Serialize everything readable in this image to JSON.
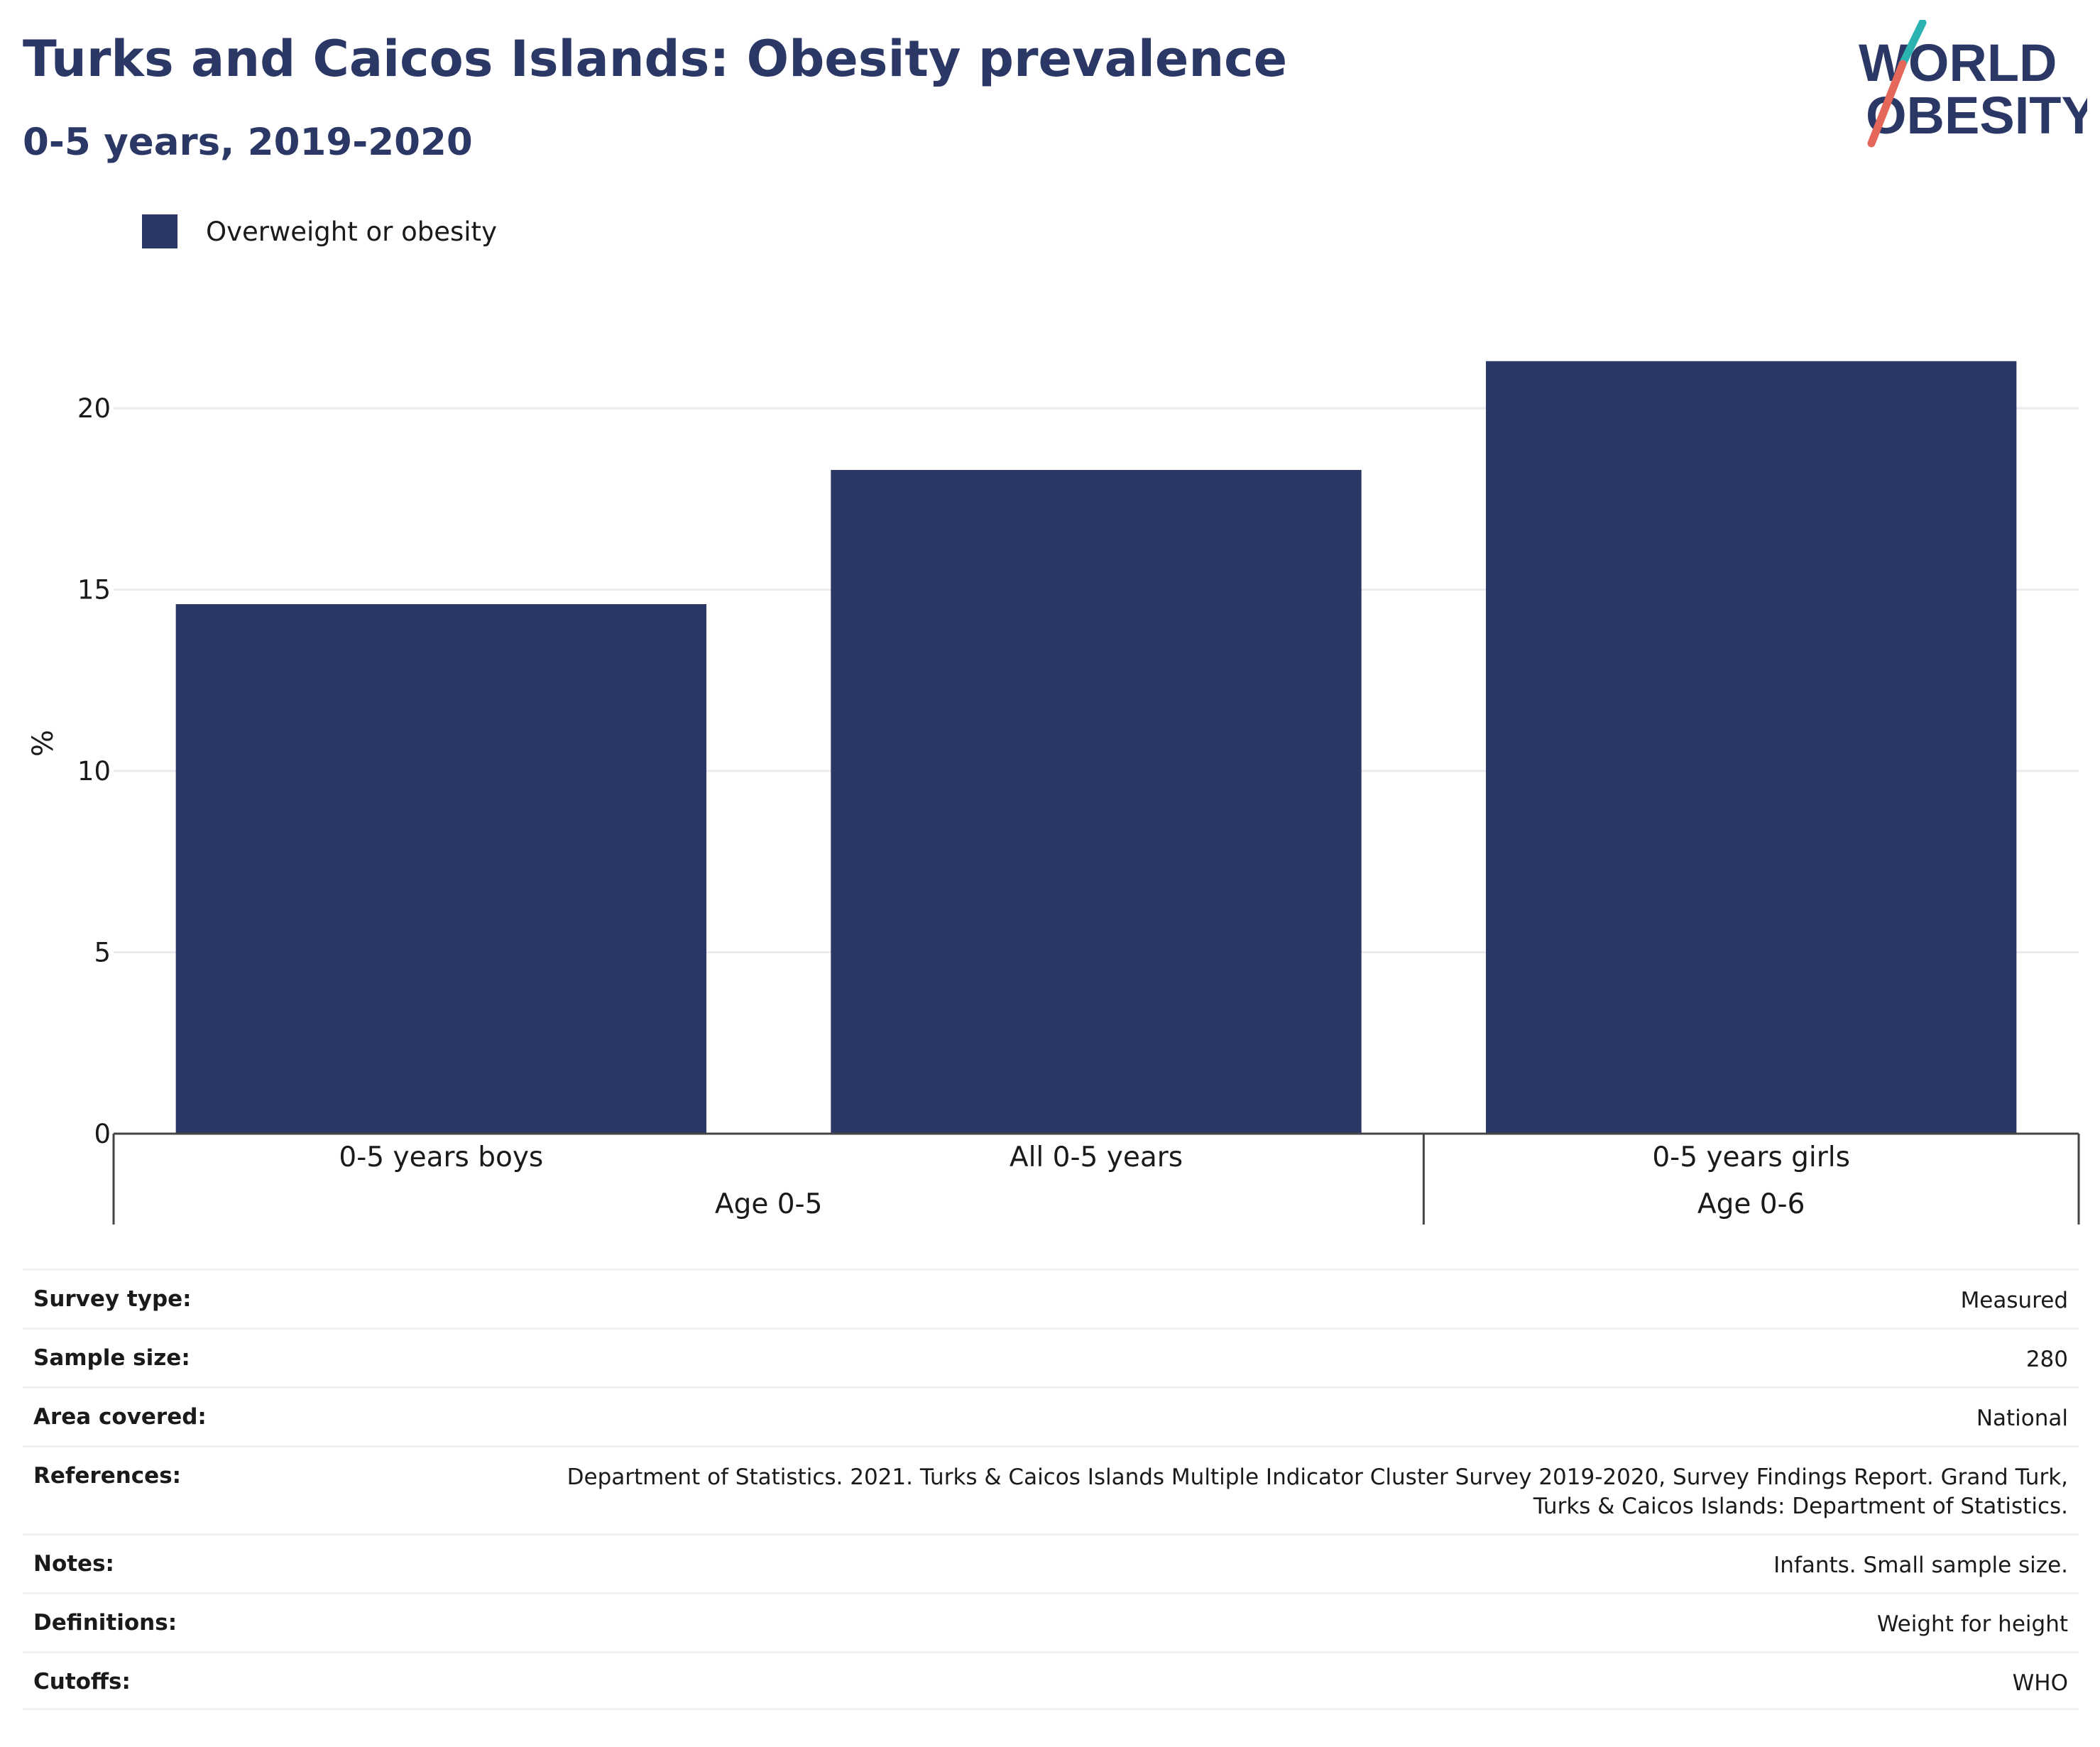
{
  "header": {
    "title": "Turks and Caicos Islands: Obesity prevalence",
    "subtitle": "0-5 years, 2019-2020"
  },
  "logo": {
    "line1": "WORLD",
    "line2": "OBESITY",
    "text_color": "#2b3764",
    "slash_colors": [
      "#2bb3b1",
      "#e4675a"
    ]
  },
  "legend": {
    "items": [
      {
        "label": "Overweight or obesity",
        "color": "#2b3764"
      }
    ]
  },
  "chart_data": {
    "type": "bar",
    "categories": [
      "0-5 years boys",
      "All 0-5 years",
      "0-5 years girls"
    ],
    "groups": [
      {
        "label": "Age 0-5",
        "categories": [
          "0-5 years boys",
          "All 0-5 years"
        ]
      },
      {
        "label": "Age 0-6",
        "categories": [
          "0-5 years girls"
        ]
      }
    ],
    "series": [
      {
        "name": "Overweight or obesity",
        "values": [
          14.6,
          18.3,
          21.3
        ],
        "color": "#2b3764"
      }
    ],
    "ylabel": "%",
    "ylim": [
      0,
      22
    ],
    "yticks": [
      0,
      5,
      10,
      15,
      20
    ],
    "grid": true,
    "legend_position": "top-left"
  },
  "info": {
    "rows": [
      {
        "key": "Survey type:",
        "value": "Measured"
      },
      {
        "key": "Sample size:",
        "value": "280"
      },
      {
        "key": "Area covered:",
        "value": "National"
      },
      {
        "key": "References:",
        "value": "Department of Statistics. 2021. Turks & Caicos Islands Multiple Indicator Cluster Survey 2019-2020, Survey Findings Report. Grand Turk, Turks & Caicos Islands: Department of Statistics."
      },
      {
        "key": "Notes:",
        "value": "Infants. Small sample size."
      },
      {
        "key": "Definitions:",
        "value": "Weight for height"
      },
      {
        "key": "Cutoffs:",
        "value": "WHO"
      }
    ]
  }
}
